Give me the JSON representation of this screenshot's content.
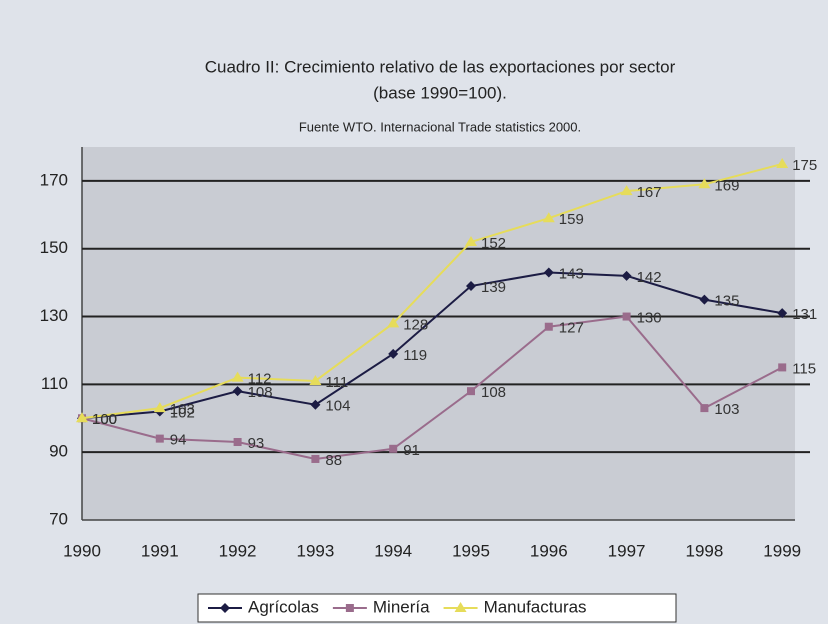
{
  "chart_data": {
    "type": "line",
    "title": [
      "Cuadro II: Crecimiento relativo de las exportaciones por sector",
      "(base 1990=100)."
    ],
    "subtitle": "Fuente WTO. Internacional Trade statistics 2000.",
    "categories": [
      "1990",
      "1991",
      "1992",
      "1993",
      "1994",
      "1995",
      "1996",
      "1997",
      "1998",
      "1999"
    ],
    "series": [
      {
        "name": "Agrícolas",
        "color": "#1c1c44",
        "marker": "diamond",
        "values": [
          100,
          102,
          108,
          104,
          119,
          139,
          143,
          142,
          135,
          131
        ]
      },
      {
        "name": "Minería",
        "color": "#9a6c8c",
        "marker": "square",
        "values": [
          100,
          94,
          93,
          88,
          91,
          108,
          127,
          130,
          103,
          115
        ]
      },
      {
        "name": "Manufacturas",
        "color": "#e6dc5a",
        "marker": "triangle",
        "values": [
          100,
          103,
          112,
          111,
          128,
          152,
          159,
          167,
          169,
          175
        ]
      }
    ],
    "ylim": [
      70,
      180
    ],
    "yticks": [
      70,
      90,
      110,
      130,
      150,
      170
    ],
    "grid": true,
    "legend": "bottom"
  }
}
